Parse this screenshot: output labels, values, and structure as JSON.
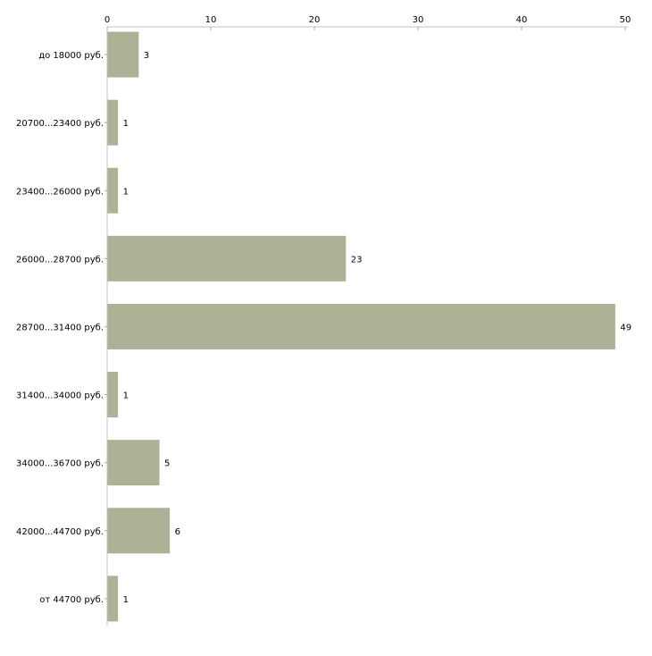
{
  "chart_data": {
    "type": "bar",
    "orientation": "horizontal",
    "title": "",
    "xlabel": "",
    "ylabel": "",
    "xlim": [
      0,
      50
    ],
    "x_ticks": [
      0,
      10,
      20,
      30,
      40,
      50
    ],
    "categories": [
      "до 18000 руб.",
      "20700...23400 руб.",
      "23400...26000 руб.",
      "26000...28700 руб.",
      "28700...31400 руб.",
      "31400...34000 руб.",
      "34000...36700 руб.",
      "42000...44700 руб.",
      "от 44700 руб."
    ],
    "values": [
      3,
      1,
      1,
      23,
      49,
      1,
      5,
      6,
      1
    ],
    "bar_color": "#adb296",
    "axis_color": "#c0c0c0",
    "tick_color": "#b0b080",
    "grid": false
  }
}
